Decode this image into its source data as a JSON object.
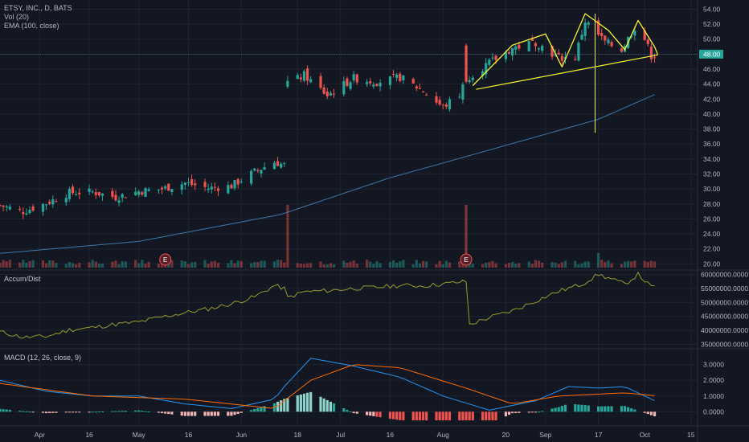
{
  "legend": {
    "symbol": "ETSY, INC., D, BATS",
    "vol": "Vol (20)",
    "ema": "EMA (100, close)"
  },
  "panes": {
    "accum_label": "Accum/Dist",
    "macd_label": "MACD (12, 26, close, 9)"
  },
  "price_axis": {
    "ticks": [
      "54.00",
      "52.00",
      "50.00",
      "48.00",
      "46.00",
      "44.00",
      "42.00",
      "40.00",
      "38.00",
      "36.00",
      "34.00",
      "32.00",
      "30.00",
      "28.00",
      "26.00",
      "24.00",
      "22.00",
      "20.00"
    ],
    "last_price": "48.00"
  },
  "ad_axis": {
    "ticks": [
      "60000000.0000",
      "55000000.0000",
      "50000000.0000",
      "45000000.0000",
      "40000000.0000",
      "35000000.0000"
    ]
  },
  "macd_axis": {
    "ticks": [
      "3.0000",
      "2.0000",
      "1.0000",
      "0.0000"
    ]
  },
  "time_axis": {
    "ticks": [
      "Apr",
      "16",
      "May",
      "16",
      "Jun",
      "18",
      "Jul",
      "16",
      "Aug",
      "20",
      "Sep",
      "17",
      "Oct",
      "15"
    ]
  },
  "earnings_markers": [
    "E",
    "E"
  ],
  "colors": {
    "background": "#131722",
    "grid": "#1f2430",
    "up": "#26a69a",
    "down": "#ef5350",
    "ema": "#3b78a8",
    "ad_line": "#9a9a2e",
    "macd_line": "#2196f3",
    "signal_line": "#ff6d00",
    "pattern": "#f5f531"
  },
  "chart_data": [
    {
      "type": "candlestick",
      "title": "ETSY, INC., D, BATS",
      "ylim": [
        19.5,
        54.8
      ],
      "x_range": [
        "Mar 20",
        "Oct 17"
      ],
      "price_anchors": [
        [
          "Mar 20",
          27.8
        ],
        [
          "Mar 27",
          27.0
        ],
        [
          "Apr 3",
          28.1
        ],
        [
          "Apr 10",
          29.5
        ],
        [
          "Apr 17",
          29.6
        ],
        [
          "Apr 24",
          28.9
        ],
        [
          "May 1",
          29.7
        ],
        [
          "May 8",
          30.0
        ],
        [
          "May 15",
          30.8
        ],
        [
          "May 22",
          30.1
        ],
        [
          "May 29",
          30.4
        ],
        [
          "Jun 5",
          32.3
        ],
        [
          "Jun 11",
          33.6
        ],
        [
          "Jun 14",
          33.2
        ],
        [
          "Jun 15",
          44.0
        ],
        [
          "Jun 20",
          45.2
        ],
        [
          "Jun 27",
          42.5
        ],
        [
          "Jul 5",
          44.8
        ],
        [
          "Jul 12",
          44.3
        ],
        [
          "Jul 19",
          44.9
        ],
        [
          "Jul 26",
          43.1
        ],
        [
          "Aug 1",
          40.9
        ],
        [
          "Aug 6",
          42.6
        ],
        [
          "Aug 8",
          44.8
        ],
        [
          "Aug 15",
          46.8
        ],
        [
          "Aug 22",
          48.8
        ],
        [
          "Aug 29",
          49.6
        ],
        [
          "Sep 5",
          47.5
        ],
        [
          "Sep 10",
          47.6
        ],
        [
          "Sep 13",
          52.4
        ],
        [
          "Sep 19",
          49.6
        ],
        [
          "Sep 24",
          48.6
        ],
        [
          "Sep 28",
          51.6
        ],
        [
          "Oct 1",
          50.0
        ],
        [
          "Oct 3",
          47.8
        ]
      ],
      "last_price": 48.0,
      "ema_100": {
        "name": "EMA (100, close)",
        "points": [
          [
            "Mar 20",
            21.4
          ],
          [
            "May 1",
            23.0
          ],
          [
            "Jun 13",
            26.6
          ],
          [
            "Jul 16",
            31.5
          ],
          [
            "Aug 15",
            35.2
          ],
          [
            "Sep 17",
            39.3
          ],
          [
            "Oct 5",
            42.8
          ]
        ]
      },
      "volume_spikes": [
        [
          "Jun 15",
          "high"
        ],
        [
          "Aug 8",
          "high"
        ],
        [
          "Sep 17",
          "medium"
        ]
      ],
      "earnings_dates": [
        "May 9",
        "Aug 8"
      ],
      "annotation": {
        "pattern": "head and shoulders",
        "left_shoulder_peak": 50.7,
        "head_peak": 53.4,
        "right_shoulder_peak": 52.5,
        "neckline": [
          [
            "Aug 11",
            43.3
          ],
          [
            "Oct 5",
            47.9
          ]
        ],
        "target_drop_to": 37.5
      }
    },
    {
      "type": "line",
      "title": "Accum/Dist",
      "ylim": [
        34000000,
        61000000
      ],
      "points": [
        [
          "Mar 20",
          39500000
        ],
        [
          "Mar 27",
          37500000
        ],
        [
          "Apr 3",
          37800000
        ],
        [
          "Apr 10",
          40200000
        ],
        [
          "Apr 17",
          41000000
        ],
        [
          "Apr 24",
          42200000
        ],
        [
          "May 1",
          43000000
        ],
        [
          "May 8",
          44800000
        ],
        [
          "May 15",
          46300000
        ],
        [
          "May 22",
          47700000
        ],
        [
          "May 29",
          49500000
        ],
        [
          "Jun 5",
          52000000
        ],
        [
          "Jun 11",
          56000000
        ],
        [
          "Jun 14",
          55000000
        ],
        [
          "Jun 15",
          51700000
        ],
        [
          "Jun 20",
          53800000
        ],
        [
          "Jun 27",
          54200000
        ],
        [
          "Jul 5",
          55000000
        ],
        [
          "Jul 12",
          55400000
        ],
        [
          "Jul 19",
          56100000
        ],
        [
          "Jul 26",
          55900000
        ],
        [
          "Aug 1",
          56600000
        ],
        [
          "Aug 8",
          57500000
        ],
        [
          "Aug 9",
          42100000
        ],
        [
          "Aug 15",
          44600000
        ],
        [
          "Aug 22",
          47000000
        ],
        [
          "Aug 29",
          50500000
        ],
        [
          "Sep 5",
          54000000
        ],
        [
          "Sep 12",
          56500000
        ],
        [
          "Sep 17",
          60000000
        ],
        [
          "Sep 21",
          58300000
        ],
        [
          "Sep 25",
          56500000
        ],
        [
          "Sep 29",
          60000000
        ],
        [
          "Oct 3",
          55500000
        ]
      ]
    },
    {
      "type": "line",
      "title": "MACD (12, 26, close, 9)",
      "ylim": [
        -0.8,
        3.9
      ],
      "series": [
        {
          "name": "",
          "points": [
            [
              "Mar 20",
              2.0
            ],
            [
              "Apr 3",
              1.3
            ],
            [
              "Apr 17",
              1.0
            ],
            [
              "May 1",
              1.0
            ],
            [
              "May 15",
              0.5
            ],
            [
              "May 29",
              0.2
            ],
            [
              "Jun 11",
              0.8
            ],
            [
              "Jun 14",
              1.6
            ],
            [
              "Jun 22",
              3.4
            ],
            [
              "Jul 5",
              2.9
            ],
            [
              "Jul 19",
              2.2
            ],
            [
              "Aug 1",
              1.0
            ],
            [
              "Aug 15",
              0.1
            ],
            [
              "Aug 29",
              0.7
            ],
            [
              "Sep 8",
              1.6
            ],
            [
              "Sep 17",
              1.5
            ],
            [
              "Sep 25",
              1.6
            ],
            [
              "Oct 5",
              0.6
            ]
          ]
        },
        {
          "name": "",
          "points": [
            [
              "Mar 20",
              1.8
            ],
            [
              "Apr 17",
              1.0
            ],
            [
              "May 15",
              0.8
            ],
            [
              "Jun 11",
              0.2
            ],
            [
              "Jun 22",
              2.0
            ],
            [
              "Jul 5",
              3.0
            ],
            [
              "Jul 19",
              2.8
            ],
            [
              "Aug 8",
              1.5
            ],
            [
              "Aug 22",
              0.5
            ],
            [
              "Sep 5",
              1.0
            ],
            [
              "Sep 25",
              1.2
            ],
            [
              "Oct 5",
              1.0
            ]
          ]
        }
      ],
      "histogram_peak": 1.25,
      "histogram_trough": -0.55
    }
  ]
}
